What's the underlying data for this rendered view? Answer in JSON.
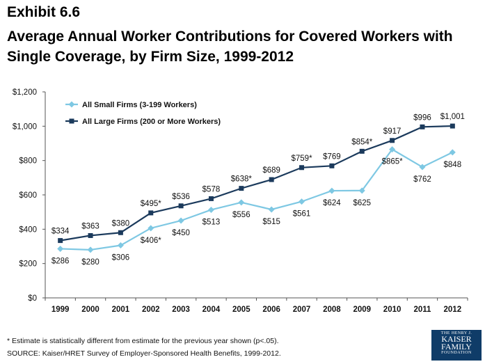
{
  "header": {
    "exhibit": "Exhibit 6.6",
    "title": "Average Annual Worker Contributions for Covered Workers with Single Coverage, by Firm Size, 1999-2012"
  },
  "footer": {
    "footnote": "* Estimate is statistically different from estimate for the previous year shown (p<.05).",
    "source": "SOURCE:  Kaiser/HRET Survey of Employer-Sponsored Health Benefits, 1999-2012."
  },
  "logo": {
    "line1": "THE HENRY J.",
    "line2": "KAISER",
    "line3": "FAMILY",
    "line4": "FOUNDATION"
  },
  "chart_data": {
    "type": "line",
    "title": "",
    "xlabel": "",
    "ylabel": "",
    "ylim": [
      0,
      1200
    ],
    "yticks": [
      0,
      200,
      400,
      600,
      800,
      1000,
      1200
    ],
    "ytick_labels": [
      "$0",
      "$200",
      "$400",
      "$600",
      "$800",
      "$1,000",
      "$1,200"
    ],
    "grid": false,
    "legend_position": "top-left",
    "categories": [
      "1999",
      "2000",
      "2001",
      "2002",
      "2003",
      "2004",
      "2005",
      "2006",
      "2007",
      "2008",
      "2009",
      "2010",
      "2011",
      "2012"
    ],
    "series": [
      {
        "name": "All Small Firms (3-199 Workers)",
        "color": "#7ec8e3",
        "marker": "diamond",
        "values": [
          286,
          280,
          306,
          406,
          450,
          513,
          556,
          515,
          561,
          624,
          625,
          865,
          762,
          848
        ],
        "labels": [
          "$286",
          "$280",
          "$306",
          "$406*",
          "$450",
          "$513",
          "$556",
          "$515",
          "$561",
          "$624",
          "$625",
          "$865*",
          "$762",
          "$848"
        ]
      },
      {
        "name": "All Large Firms (200 or More Workers)",
        "color": "#1b3a5c",
        "marker": "square",
        "values": [
          334,
          363,
          380,
          495,
          536,
          578,
          638,
          689,
          759,
          769,
          854,
          917,
          996,
          1001
        ],
        "labels": [
          "$334",
          "$363",
          "$380",
          "$495*",
          "$536",
          "$578",
          "$638*",
          "$689",
          "$759*",
          "$769",
          "$854*",
          "$917",
          "$996",
          "$1,001"
        ]
      }
    ]
  }
}
